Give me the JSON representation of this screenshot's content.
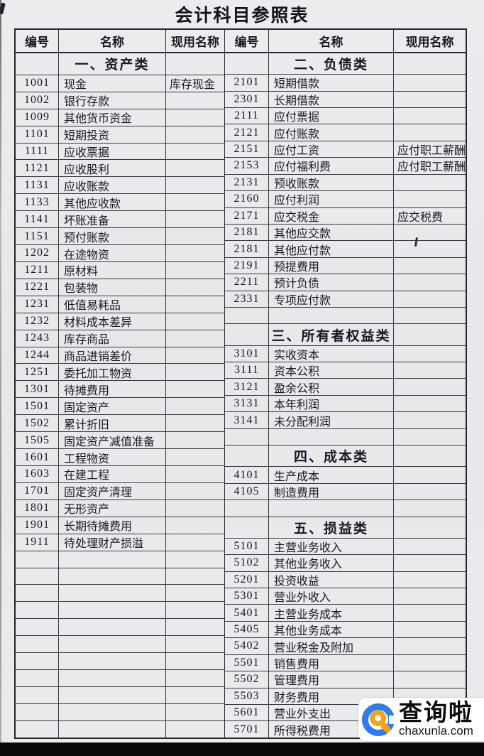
{
  "title": "会计科目参照表",
  "header": {
    "code": "编号",
    "name": "名称",
    "current_name": "现用名称"
  },
  "left_rows": [
    {
      "type": "section",
      "code": "",
      "name": "一、资产类",
      "current": ""
    },
    {
      "code": "1001",
      "name": "现金",
      "current": "库存现金"
    },
    {
      "code": "1002",
      "name": "银行存款",
      "current": ""
    },
    {
      "code": "1009",
      "name": "其他货币资金",
      "current": ""
    },
    {
      "code": "1101",
      "name": "短期投资",
      "current": ""
    },
    {
      "code": "1111",
      "name": "应收票据",
      "current": ""
    },
    {
      "code": "1121",
      "name": "应收股利",
      "current": ""
    },
    {
      "code": "1131",
      "name": "应收账款",
      "current": ""
    },
    {
      "code": "1133",
      "name": "其他应收款",
      "current": ""
    },
    {
      "code": "1141",
      "name": "坏账准备",
      "current": ""
    },
    {
      "code": "1151",
      "name": "预付账款",
      "current": ""
    },
    {
      "code": "1202",
      "name": "在途物资",
      "current": ""
    },
    {
      "code": "1211",
      "name": "原材料",
      "current": ""
    },
    {
      "code": "1221",
      "name": "包装物",
      "current": ""
    },
    {
      "code": "1231",
      "name": "低值易耗品",
      "current": ""
    },
    {
      "code": "1232",
      "name": "材料成本差异",
      "current": ""
    },
    {
      "code": "1243",
      "name": "库存商品",
      "current": ""
    },
    {
      "code": "1244",
      "name": "商品进销差价",
      "current": ""
    },
    {
      "code": "1251",
      "name": "委托加工物资",
      "current": ""
    },
    {
      "code": "1301",
      "name": "待摊费用",
      "current": ""
    },
    {
      "code": "1501",
      "name": "固定资产",
      "current": ""
    },
    {
      "code": "1502",
      "name": "累计折旧",
      "current": ""
    },
    {
      "code": "1505",
      "name": "固定资产减值准备",
      "current": ""
    },
    {
      "code": "1601",
      "name": "工程物资",
      "current": ""
    },
    {
      "code": "1603",
      "name": "在建工程",
      "current": ""
    },
    {
      "code": "1701",
      "name": "固定资产清理",
      "current": ""
    },
    {
      "code": "1801",
      "name": "无形资产",
      "current": ""
    },
    {
      "code": "1901",
      "name": "长期待摊费用",
      "current": ""
    },
    {
      "code": "1911",
      "name": "待处理财产损溢",
      "current": ""
    },
    {
      "type": "empty",
      "code": "",
      "name": "",
      "current": ""
    },
    {
      "type": "empty",
      "code": "",
      "name": "",
      "current": ""
    },
    {
      "type": "empty",
      "code": "",
      "name": "",
      "current": ""
    },
    {
      "type": "empty",
      "code": "",
      "name": "",
      "current": ""
    },
    {
      "type": "empty",
      "code": "",
      "name": "",
      "current": ""
    },
    {
      "type": "empty",
      "code": "",
      "name": "",
      "current": ""
    },
    {
      "type": "empty",
      "code": "",
      "name": "",
      "current": ""
    },
    {
      "type": "empty",
      "code": "",
      "name": "",
      "current": ""
    },
    {
      "type": "empty",
      "code": "",
      "name": "",
      "current": ""
    },
    {
      "type": "empty",
      "code": "",
      "name": "",
      "current": ""
    },
    {
      "type": "empty",
      "code": "",
      "name": "",
      "current": ""
    }
  ],
  "right_rows": [
    {
      "type": "section",
      "code": "",
      "name": "二、负债类",
      "current": ""
    },
    {
      "code": "2101",
      "name": "短期借款",
      "current": ""
    },
    {
      "code": "2301",
      "name": "长期借款",
      "current": ""
    },
    {
      "code": "2111",
      "name": "应付票据",
      "current": ""
    },
    {
      "code": "2121",
      "name": "应付账款",
      "current": ""
    },
    {
      "code": "2151",
      "name": "应付工资",
      "current": "应付职工薪酬"
    },
    {
      "code": "2153",
      "name": "应付福利费",
      "current": "应付职工薪酬"
    },
    {
      "code": "2131",
      "name": "预收账款",
      "current": ""
    },
    {
      "code": "2160",
      "name": "应付利润",
      "current": ""
    },
    {
      "code": "2171",
      "name": "应交税金",
      "current": "应交税费"
    },
    {
      "code": "2181",
      "name": "其他应交款",
      "current": ""
    },
    {
      "code": "2181",
      "name": "其他应付款",
      "current": ""
    },
    {
      "code": "2191",
      "name": "预提费用",
      "current": ""
    },
    {
      "code": "2211",
      "name": "预计负债",
      "current": ""
    },
    {
      "code": "2331",
      "name": "专项应付款",
      "current": ""
    },
    {
      "type": "empty",
      "code": "",
      "name": "",
      "current": ""
    },
    {
      "type": "section",
      "code": "",
      "name": "三、所有者权益类",
      "current": ""
    },
    {
      "code": "3101",
      "name": "实收资本",
      "current": ""
    },
    {
      "code": "3111",
      "name": "资本公积",
      "current": ""
    },
    {
      "code": "3121",
      "name": "盈余公积",
      "current": ""
    },
    {
      "code": "3131",
      "name": "本年利润",
      "current": ""
    },
    {
      "code": "3141",
      "name": "未分配利润",
      "current": ""
    },
    {
      "type": "empty",
      "code": "",
      "name": "",
      "current": ""
    },
    {
      "type": "section",
      "code": "",
      "name": "四、成本类",
      "current": ""
    },
    {
      "code": "4101",
      "name": "生产成本",
      "current": ""
    },
    {
      "code": "4105",
      "name": "制造费用",
      "current": ""
    },
    {
      "type": "empty",
      "code": "",
      "name": "",
      "current": ""
    },
    {
      "type": "section",
      "code": "",
      "name": "五、损益类",
      "current": ""
    },
    {
      "code": "5101",
      "name": "主营业务收入",
      "current": ""
    },
    {
      "code": "5102",
      "name": "其他业务收入",
      "current": ""
    },
    {
      "code": "5201",
      "name": "投资收益",
      "current": ""
    },
    {
      "code": "5301",
      "name": "营业外收入",
      "current": ""
    },
    {
      "code": "5401",
      "name": "主营业务成本",
      "current": ""
    },
    {
      "code": "5405",
      "name": "其他业务成本",
      "current": ""
    },
    {
      "code": "5402",
      "name": "营业税金及附加",
      "current": ""
    },
    {
      "code": "5501",
      "name": "销售费用",
      "current": ""
    },
    {
      "code": "5502",
      "name": "管理费用",
      "current": ""
    },
    {
      "code": "5503",
      "name": "财务费用",
      "current": ""
    },
    {
      "code": "5601",
      "name": "营业外支出",
      "current": ""
    },
    {
      "code": "5701",
      "name": "所得税费用",
      "current": ""
    }
  ],
  "watermark": {
    "brand": "查询啦",
    "domain": "chaxunla.com"
  },
  "colors": {
    "paper": "#e8eaec",
    "grid_line": "#3a3a44",
    "text": "#181824",
    "logo_blue": "#2d7ded",
    "logo_orange": "#f5a31f",
    "bottom_bar": "#0a0a0a",
    "watermark_bg": "#ffffff"
  }
}
